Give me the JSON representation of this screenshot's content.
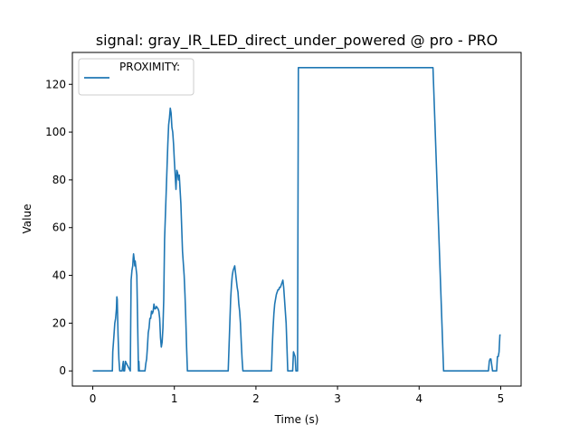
{
  "colors": {
    "series": "#1f77b4",
    "axis": "#000000",
    "background": "#ffffff"
  },
  "chart_data": {
    "type": "line",
    "title": "signal: gray_IR_LED_direct_under_powered @ pro - PRO",
    "xlabel": "Time (s)",
    "ylabel": "Value",
    "xlim": [
      -0.25,
      5.25
    ],
    "ylim": [
      -6.35,
      133.35
    ],
    "xticks": [
      0,
      1,
      2,
      3,
      4,
      5
    ],
    "xtick_labels": [
      "0",
      "1",
      "2",
      "3",
      "4",
      "5"
    ],
    "yticks": [
      0,
      20,
      40,
      60,
      80,
      100,
      120
    ],
    "ytick_labels": [
      "0",
      "20",
      "40",
      "60",
      "80",
      "100",
      "120"
    ],
    "grid": false,
    "legend_position": "top-left",
    "series": [
      {
        "name": "PROXIMITY:",
        "x": [
          0,
          0.24,
          0.245,
          0.26,
          0.27,
          0.28,
          0.29,
          0.295,
          0.3,
          0.31,
          0.32,
          0.33,
          0.335,
          0.34,
          0.36,
          0.37,
          0.375,
          0.38,
          0.39,
          0.395,
          0.4,
          0.46,
          0.465,
          0.47,
          0.48,
          0.49,
          0.495,
          0.5,
          0.51,
          0.515,
          0.52,
          0.54,
          0.55,
          0.56,
          0.565,
          0.57,
          0.58,
          0.585,
          0.59,
          0.63,
          0.64,
          0.65,
          0.66,
          0.67,
          0.68,
          0.69,
          0.7,
          0.71,
          0.72,
          0.73,
          0.74,
          0.75,
          0.76,
          0.77,
          0.78,
          0.8,
          0.81,
          0.82,
          0.83,
          0.84,
          0.85,
          0.86,
          0.87,
          0.88,
          0.89,
          0.9,
          0.91,
          0.92,
          0.93,
          0.94,
          0.95,
          0.96,
          0.97,
          0.98,
          0.99,
          1.0,
          1.01,
          1.02,
          1.03,
          1.04,
          1.05,
          1.06,
          1.07,
          1.08,
          1.09,
          1.1,
          1.11,
          1.12,
          1.13,
          1.14,
          1.15,
          1.16,
          1.17,
          1.18,
          1.19,
          1.2,
          1.66,
          1.67,
          1.68,
          1.69,
          1.7,
          1.71,
          1.72,
          1.73,
          1.74,
          1.75,
          1.76,
          1.77,
          1.78,
          1.79,
          1.8,
          1.81,
          1.82,
          1.83,
          1.84,
          1.85,
          1.86,
          2.19,
          2.2,
          2.21,
          2.22,
          2.23,
          2.24,
          2.25,
          2.26,
          2.27,
          2.28,
          2.29,
          2.3,
          2.31,
          2.32,
          2.33,
          2.34,
          2.35,
          2.36,
          2.37,
          2.38,
          2.39,
          2.4,
          2.41,
          2.42,
          2.43,
          2.45,
          2.46,
          2.47,
          2.48,
          2.49,
          2.495,
          2.5,
          2.51,
          2.52,
          4.16,
          4.165,
          4.17,
          4.3,
          4.305,
          4.31,
          4.83,
          4.84,
          4.85,
          4.86,
          4.87,
          4.88,
          4.9,
          4.92,
          4.94,
          4.95,
          4.96,
          4.97,
          4.98,
          4.99,
          5.0
        ],
        "values": [
          0,
          0,
          8,
          15,
          20,
          22,
          26,
          31,
          30,
          15,
          5,
          0,
          0,
          0,
          0,
          3,
          4,
          0,
          0,
          2,
          4,
          0,
          20,
          38,
          42,
          44,
          47,
          49,
          46,
          44,
          46,
          40,
          20,
          0,
          4,
          0,
          0,
          0,
          0,
          0,
          0,
          3,
          5,
          10,
          16,
          18,
          22,
          22,
          25,
          24,
          25,
          28,
          26,
          26,
          27,
          26,
          25,
          22,
          14,
          10,
          12,
          18,
          30,
          55,
          65,
          75,
          85,
          95,
          103,
          106,
          110,
          108,
          102,
          100,
          95,
          88,
          82,
          76,
          84,
          83,
          80,
          82,
          76,
          70,
          60,
          50,
          45,
          40,
          32,
          22,
          10,
          0,
          0,
          0,
          0,
          0,
          0,
          10,
          20,
          30,
          36,
          40,
          42,
          43,
          44,
          41,
          38,
          35,
          33,
          28,
          25,
          20,
          12,
          5,
          0,
          0,
          0,
          0,
          10,
          18,
          24,
          28,
          30,
          32,
          33,
          34,
          34,
          35,
          35,
          36,
          37,
          38,
          35,
          30,
          25,
          20,
          10,
          0,
          0,
          0,
          0,
          0,
          0,
          8,
          7,
          6,
          0,
          0,
          0,
          0,
          127,
          127,
          127,
          127,
          0,
          0,
          0,
          0,
          0,
          0,
          4,
          5,
          5,
          0,
          0,
          0,
          0,
          6,
          6,
          8,
          15,
          15
        ]
      }
    ]
  }
}
